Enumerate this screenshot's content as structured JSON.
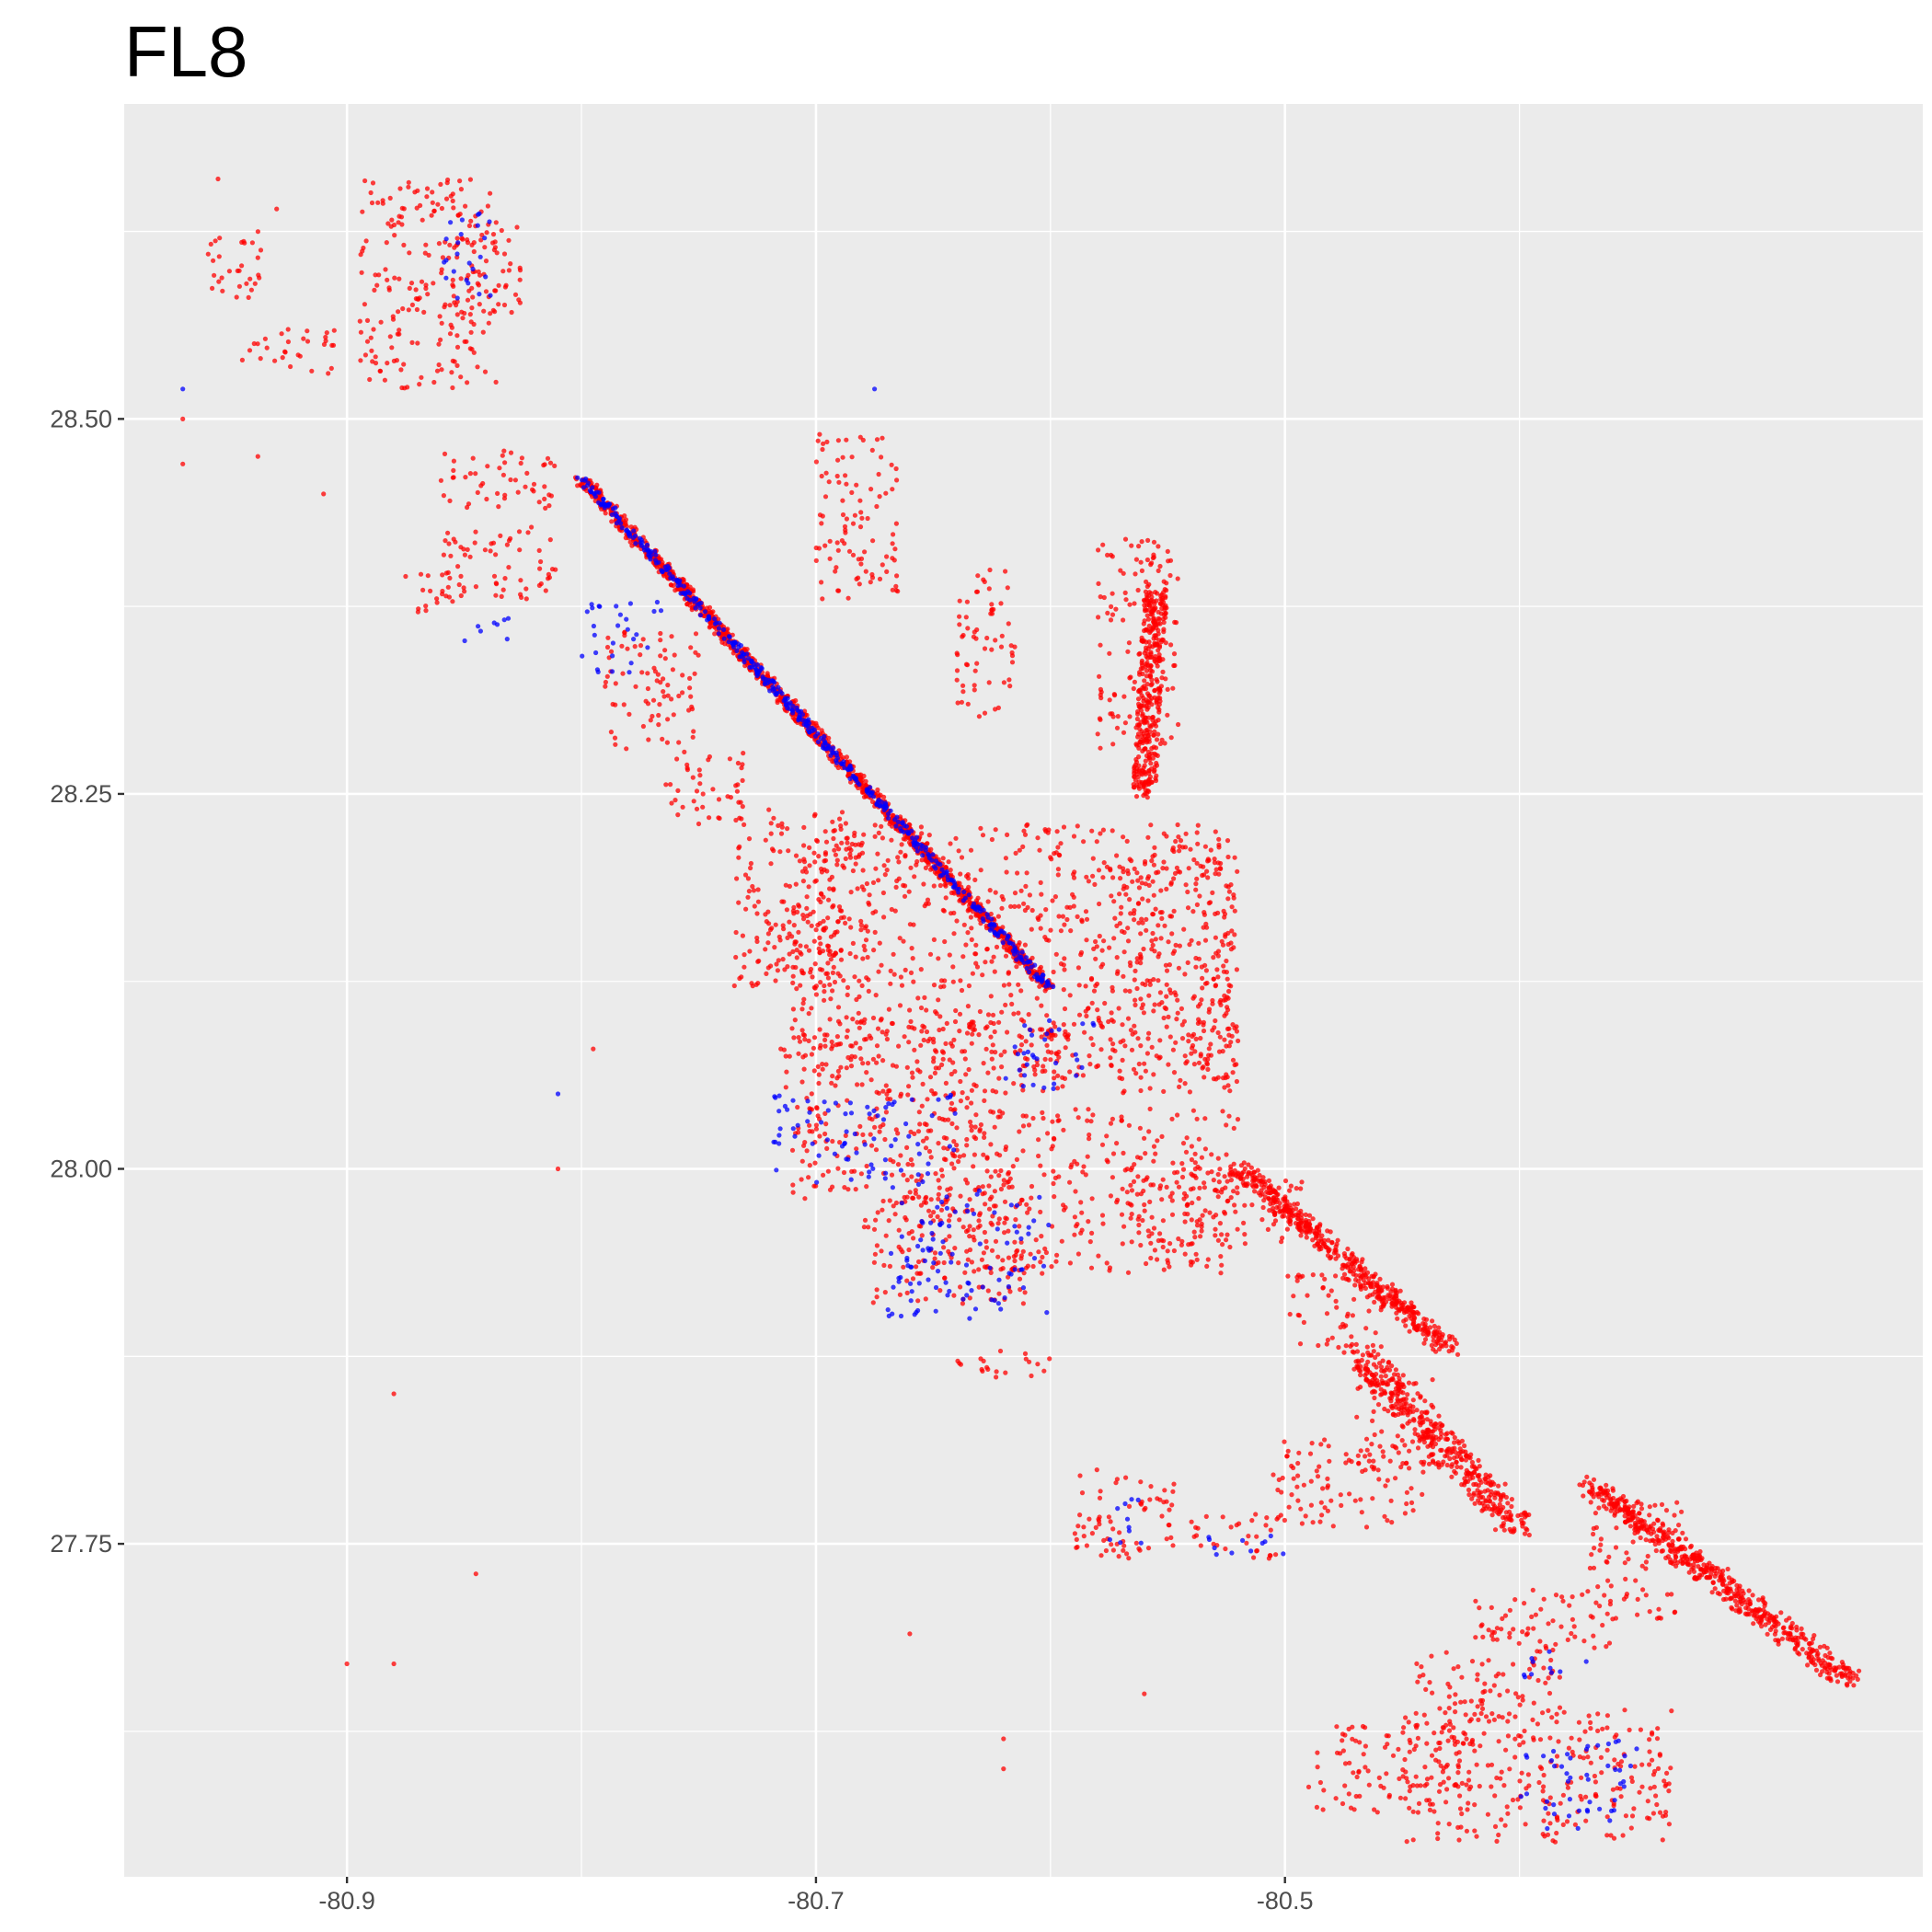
{
  "chart_data": {
    "type": "scatter",
    "title": "FL8",
    "xlabel": "",
    "ylabel": "",
    "xlim": [
      -80.995,
      -80.228
    ],
    "ylim": [
      27.528,
      28.71
    ],
    "x_ticks": [
      -80.9,
      -80.7,
      -80.5
    ],
    "x_tick_labels": [
      "-80.9",
      "-80.7",
      "-80.5"
    ],
    "x_minor_ticks": [
      -81.0,
      -80.8,
      -80.6,
      -80.4
    ],
    "y_ticks": [
      27.75,
      28.0,
      28.25,
      28.5
    ],
    "y_tick_labels": [
      "27.75",
      "28.00",
      "28.25",
      "28.50"
    ],
    "y_minor_ticks": [
      27.625,
      27.875,
      28.125,
      28.375,
      28.625
    ],
    "grid": true,
    "legend": "none",
    "colors": {
      "panel_background": "#EBEBEB",
      "grid": "#FFFFFF",
      "series_red": "#FF0000",
      "series_blue": "#0000FF"
    },
    "series": [
      {
        "color": "red",
        "clusters": [
          {
            "x": [
              -80.895,
              -80.835
            ],
            "y": [
              28.52,
              28.66
            ]
          },
          {
            "x": [
              -80.855,
              -80.825
            ],
            "y": [
              28.57,
              28.63
            ]
          },
          {
            "x": [
              -80.962,
              -80.935
            ],
            "y": [
              28.58,
              28.625
            ]
          },
          {
            "x": [
              -80.945,
              -80.905
            ],
            "y": [
              28.53,
              28.56
            ]
          },
          {
            "x": [
              -80.86,
              -80.81
            ],
            "y": [
              28.44,
              28.48
            ]
          },
          {
            "x": [
              -80.86,
              -80.81
            ],
            "y": [
              28.38,
              28.43
            ]
          },
          {
            "x": [
              -80.87,
              -80.85
            ],
            "y": [
              28.37,
              28.4
            ]
          },
          {
            "x": [
              -80.79,
              -80.75
            ],
            "y": [
              28.28,
              28.36
            ]
          },
          {
            "x": [
              -80.765,
              -80.73
            ],
            "y": [
              28.23,
              28.28
            ]
          },
          {
            "x": [
              -80.735,
              -80.68
            ],
            "y": [
              28.12,
              28.24
            ]
          },
          {
            "x": [
              -80.725,
              -80.69
            ],
            "y": [
              28.13,
              28.17
            ]
          },
          {
            "x": [
              -80.715,
              -80.59
            ],
            "y": [
              28.05,
              28.1
            ]
          },
          {
            "x": [
              -80.71,
              -80.62
            ],
            "y": [
              27.98,
              28.05
            ]
          },
          {
            "x": [
              -80.68,
              -80.61
            ],
            "y": [
              27.91,
              27.98
            ]
          },
          {
            "x": [
              -80.71,
              -80.52
            ],
            "y": [
              28.06,
              28.23
            ]
          },
          {
            "x": [
              -80.66,
              -80.52
            ],
            "y": [
              27.93,
              28.04
            ]
          },
          {
            "x": [
              -80.57,
              -80.49
            ],
            "y": [
              27.95,
              28.0
            ]
          },
          {
            "x": [
              -80.64,
              -80.6
            ],
            "y": [
              27.86,
              27.88
            ]
          },
          {
            "x": [
              -80.58,
              -80.545
            ],
            "y": [
              28.28,
              28.42
            ]
          },
          {
            "x": [
              -80.7,
              -80.665
            ],
            "y": [
              28.38,
              28.49
            ]
          },
          {
            "x": [
              -80.64,
              -80.615
            ],
            "y": [
              28.3,
              28.4
            ]
          },
          {
            "x": [
              -80.575,
              -80.52
            ],
            "y": [
              28.05,
              28.21
            ]
          },
          {
            "x": [
              -80.5,
              -80.455
            ],
            "y": [
              27.88,
              27.93
            ]
          },
          {
            "x": [
              -80.47,
              -80.43
            ],
            "y": [
              27.8,
              27.86
            ]
          },
          {
            "x": [
              -80.505,
              -80.44
            ],
            "y": [
              27.76,
              27.82
            ]
          },
          {
            "x": [
              -80.59,
              -80.545
            ],
            "y": [
              27.74,
              27.8
            ]
          },
          {
            "x": [
              -80.54,
              -80.5
            ],
            "y": [
              27.74,
              27.77
            ]
          },
          {
            "x": [
              -80.42,
              -80.36
            ],
            "y": [
              27.68,
              27.72
            ]
          },
          {
            "x": [
              -80.445,
              -80.38
            ],
            "y": [
              27.63,
              27.68
            ]
          },
          {
            "x": [
              -80.45,
              -80.335
            ],
            "y": [
              27.55,
              27.64
            ]
          },
          {
            "x": [
              -80.49,
              -80.42
            ],
            "y": [
              27.57,
              27.63
            ]
          },
          {
            "x": [
              -80.37,
              -80.33
            ],
            "y": [
              27.7,
              27.78
            ]
          }
        ],
        "strips": [
          {
            "from": [
              -80.8,
              28.46
            ],
            "to": [
              -80.6,
              28.12
            ],
            "width": 0.006
          },
          {
            "from": [
              -80.52,
              28.0
            ],
            "to": [
              -80.43,
              27.88
            ],
            "width": 0.01
          },
          {
            "from": [
              -80.47,
              27.88
            ],
            "to": [
              -80.4,
              27.76
            ],
            "width": 0.015
          },
          {
            "from": [
              -80.37,
              27.79
            ],
            "to": [
              -80.26,
              27.66
            ],
            "width": 0.012
          },
          {
            "from": [
              -80.555,
              28.39
            ],
            "to": [
              -80.56,
              28.25
            ],
            "width": 0.01
          }
        ],
        "isolated_points": [
          [
            -80.93,
            28.64
          ],
          [
            -80.955,
            28.66
          ],
          [
            -80.938,
            28.475
          ],
          [
            -80.91,
            28.45
          ],
          [
            -80.875,
            28.395
          ],
          [
            -80.85,
            28.385
          ],
          [
            -80.795,
            28.08
          ],
          [
            -80.81,
            28.0
          ],
          [
            -80.845,
            27.73
          ],
          [
            -80.88,
            27.67
          ],
          [
            -80.9,
            27.67
          ],
          [
            -80.88,
            27.85
          ],
          [
            -80.62,
            27.62
          ],
          [
            -80.62,
            27.6
          ],
          [
            -80.715,
            28.08
          ],
          [
            -80.66,
            27.69
          ],
          [
            -80.56,
            27.65
          ],
          [
            -80.75,
            28.23
          ],
          [
            -80.97,
            28.5
          ],
          [
            -80.97,
            28.47
          ]
        ]
      },
      {
        "color": "blue",
        "clusters": [
          {
            "x": [
              -80.86,
              -80.835
            ],
            "y": [
              28.58,
              28.64
            ]
          },
          {
            "x": [
              -80.8,
              -80.765
            ],
            "y": [
              28.33,
              28.38
            ]
          },
          {
            "x": [
              -80.85,
              -80.83
            ],
            "y": [
              28.35,
              28.37
            ]
          },
          {
            "x": [
              -80.67,
              -80.6
            ],
            "y": [
              27.9,
              27.99
            ]
          },
          {
            "x": [
              -80.72,
              -80.64
            ],
            "y": [
              27.99,
              28.05
            ]
          },
          {
            "x": [
              -80.62,
              -80.58
            ],
            "y": [
              28.05,
              28.1
            ]
          },
          {
            "x": [
              -80.575,
              -80.555
            ],
            "y": [
              27.75,
              27.78
            ]
          },
          {
            "x": [
              -80.535,
              -80.5
            ],
            "y": [
              27.74,
              27.76
            ]
          },
          {
            "x": [
              -80.4,
              -80.37
            ],
            "y": [
              27.66,
              27.68
            ]
          },
          {
            "x": [
              -80.4,
              -80.35
            ],
            "y": [
              27.56,
              27.62
            ]
          }
        ],
        "strips": [
          {
            "from": [
              -80.8,
              28.46
            ],
            "to": [
              -80.6,
              28.12
            ],
            "width": 0.004
          }
        ],
        "isolated_points": [
          [
            -80.675,
            28.52
          ],
          [
            -80.97,
            28.52
          ],
          [
            -80.81,
            28.05
          ],
          [
            -80.63,
            27.95
          ]
        ]
      }
    ]
  }
}
